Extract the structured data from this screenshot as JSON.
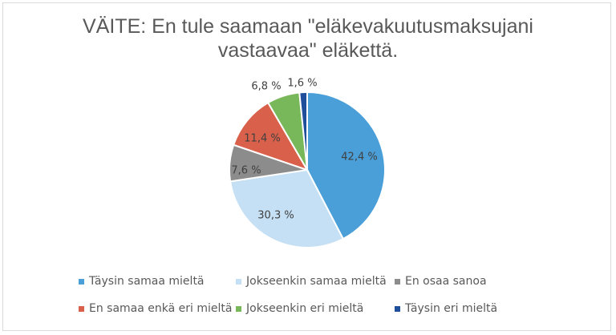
{
  "chart_data": {
    "type": "pie",
    "title_lines": [
      "VÄITE: En tule saamaan \"eläkevakuutusmaksujani",
      "vastaavaa\" eläkettä."
    ],
    "slices": [
      {
        "name": "Täysin samaa mieltä",
        "value": 42.4,
        "label": "42,4 %",
        "color": "#4a9fd8"
      },
      {
        "name": "Jokseenkin samaa mieltä",
        "value": 30.3,
        "label": "30,3 %",
        "color": "#c5e0f4"
      },
      {
        "name": "En osaa sanoa",
        "value": 7.6,
        "label": "7,6 %",
        "color": "#8c8c8c"
      },
      {
        "name": "En samaa enkä eri mieltä",
        "value": 11.4,
        "label": "11,4 %",
        "color": "#d9604a"
      },
      {
        "name": "Jokseenkin eri mieltä",
        "value": 6.8,
        "label": "6,8 %",
        "color": "#79b85a"
      },
      {
        "name": "Täysin eri mieltä",
        "value": 1.6,
        "label": "1,6 %",
        "color": "#1f4e9a"
      }
    ],
    "legend_position": "bottom"
  }
}
